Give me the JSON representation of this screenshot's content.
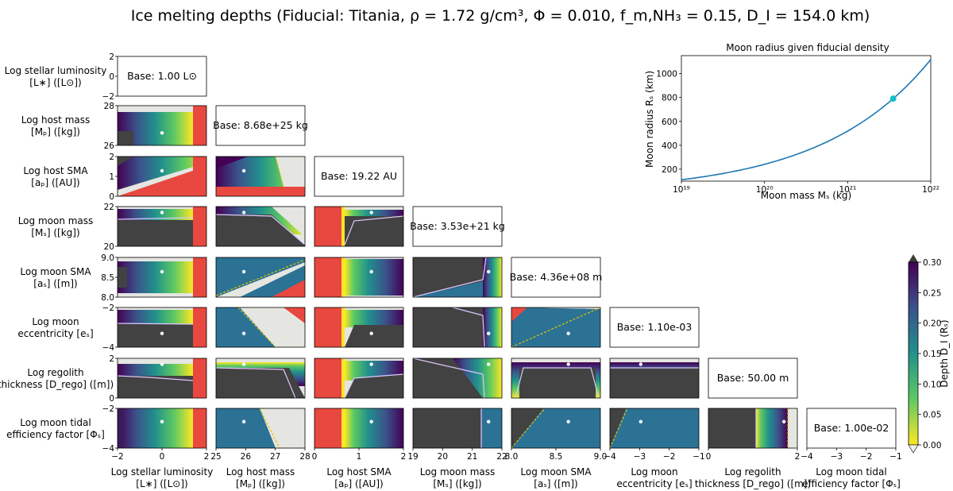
{
  "title": "Ice melting depths (Fiducial: Titania, ρ = 1.72 g/cm³, Φ = 0.010, f_m,NH₃ =  0.15, D_I = 154.0 km)",
  "row_labels": [
    {
      "l1": "Log stellar luminosity",
      "l2": "[L∗] ([L⊙])"
    },
    {
      "l1": "Log host mass",
      "l2": "[Mₚ] ([kg])"
    },
    {
      "l1": "Log host SMA",
      "l2": "[aₚ] ([AU])"
    },
    {
      "l1": "Log moon mass",
      "l2": "[Mₛ] ([kg])"
    },
    {
      "l1": "Log moon SMA",
      "l2": "[aₛ] ([m])"
    },
    {
      "l1": "Log moon",
      "l2": "eccentricity [eₛ]"
    },
    {
      "l1": "Log regolith",
      "l2": "thickness [D_rego] ([m])"
    },
    {
      "l1": "Log moon tidal",
      "l2": "efficiency factor [Φₛ]"
    }
  ],
  "col_labels": [
    {
      "l1": "Log stellar luminosity",
      "l2": "[L∗] ([L⊙])"
    },
    {
      "l1": "Log host mass",
      "l2": "[Mₚ] ([kg])"
    },
    {
      "l1": "Log host SMA",
      "l2": "[aₚ] ([AU])"
    },
    {
      "l1": "Log moon mass",
      "l2": "[Mₛ] ([kg])"
    },
    {
      "l1": "Log moon SMA",
      "l2": "[aₛ] ([m])"
    },
    {
      "l1": "Log moon",
      "l2": "eccentricity [eₛ]"
    },
    {
      "l1": "Log regolith",
      "l2": "thickness [D_rego] ([m])"
    },
    {
      "l1": "Log moon tidal",
      "l2": "efficiency factor [Φₛ]"
    }
  ],
  "base_labels": [
    "Base: 1.00 L⊙",
    "Base: 8.68e+25 kg",
    "Base: 19.22 AU",
    "Base: 3.53e+21 kg",
    "Base: 4.36e+08 m",
    "Base: 1.10e-03",
    "Base: 50.00 m",
    "Base: 1.00e-02"
  ],
  "x_ticks": [
    [
      "−2",
      "0",
      "2"
    ],
    [
      "25",
      "26",
      "27",
      "28"
    ],
    [
      "0",
      "1",
      "2"
    ],
    [
      "19",
      "20",
      "21",
      "22"
    ],
    [
      "8.0",
      "8.5",
      "9.0"
    ],
    [
      "−4",
      "−3",
      "−2",
      "−1"
    ],
    [
      "0",
      "2"
    ],
    [
      "−4",
      "−3",
      "−2",
      "−1"
    ]
  ],
  "y_ticks": [
    [
      "2",
      "0",
      "−2"
    ],
    [
      "28",
      "26"
    ],
    [
      "2",
      "1",
      "0"
    ],
    [
      "22",
      "20"
    ],
    [
      "9.0",
      "8.5",
      "8.0"
    ],
    [
      "−2",
      "−4"
    ],
    [
      "2",
      "0"
    ],
    [
      "−2",
      "−4"
    ]
  ],
  "colorbar": {
    "label": "Depth D_I (Rₛ)",
    "ticks": [
      "0.30",
      "0.25",
      "0.20",
      "0.15",
      "0.10",
      "0.05",
      "0.00"
    ],
    "colors": [
      "#fde725",
      "#5ec962",
      "#21918c",
      "#3b528b",
      "#440154"
    ],
    "over_color": "#3d3d3d",
    "under_color": "#f0f0e8"
  },
  "panel_colors": {
    "no_melt": "#424242",
    "excluded": "#e8483f",
    "background": "#e5e6e1",
    "fiducial_dot": "#ffffff"
  },
  "chart_data": [
    {
      "type": "line",
      "title": "Moon radius given fiducial density",
      "xlabel": "Moon mass Mₛ (kg)",
      "ylabel": "Moon radius Rₛ (km)",
      "xscale": "log",
      "xlim": [
        1e+19,
        1e+22
      ],
      "ylim": [
        100,
        1150
      ],
      "x_tick_labels": [
        "10¹⁹",
        "10²⁰",
        "10²¹",
        "10²²"
      ],
      "y_tick_labels": [
        "200",
        "400",
        "600",
        "800",
        "1000"
      ],
      "y_ticks": [
        200,
        400,
        600,
        800,
        1000
      ],
      "x": [
        1e+19,
        3.16e+19,
        1e+20,
        3.16e+20,
        1e+21,
        3.53e+21,
        1e+22
      ],
      "y": [
        112,
        164,
        241,
        354,
        519,
        790,
        1115
      ],
      "line_color": "#1f77b4",
      "marker": {
        "x": 3.53e+21,
        "y": 790,
        "color": "#17becf"
      }
    },
    {
      "type": "heatmap",
      "title": "Corner plot of ice melting depth D_I (Rₛ) for pairs of log parameters",
      "parameters": [
        "log L∗",
        "log Mₚ",
        "log aₚ",
        "log Mₛ",
        "log aₛ",
        "log eₛ",
        "log D_rego",
        "log Φₛ"
      ],
      "ranges": [
        [
          -2,
          2
        ],
        [
          25,
          28
        ],
        [
          0,
          2
        ],
        [
          19,
          22
        ],
        [
          8,
          9
        ],
        [
          -4,
          -1
        ],
        [
          0,
          2
        ],
        [
          -4,
          -1
        ]
      ],
      "fiducial": [
        0,
        25.94,
        1.28,
        21.55,
        8.64,
        -2.96,
        1.7,
        -2.0
      ],
      "color_range": [
        0,
        0.3
      ]
    }
  ]
}
